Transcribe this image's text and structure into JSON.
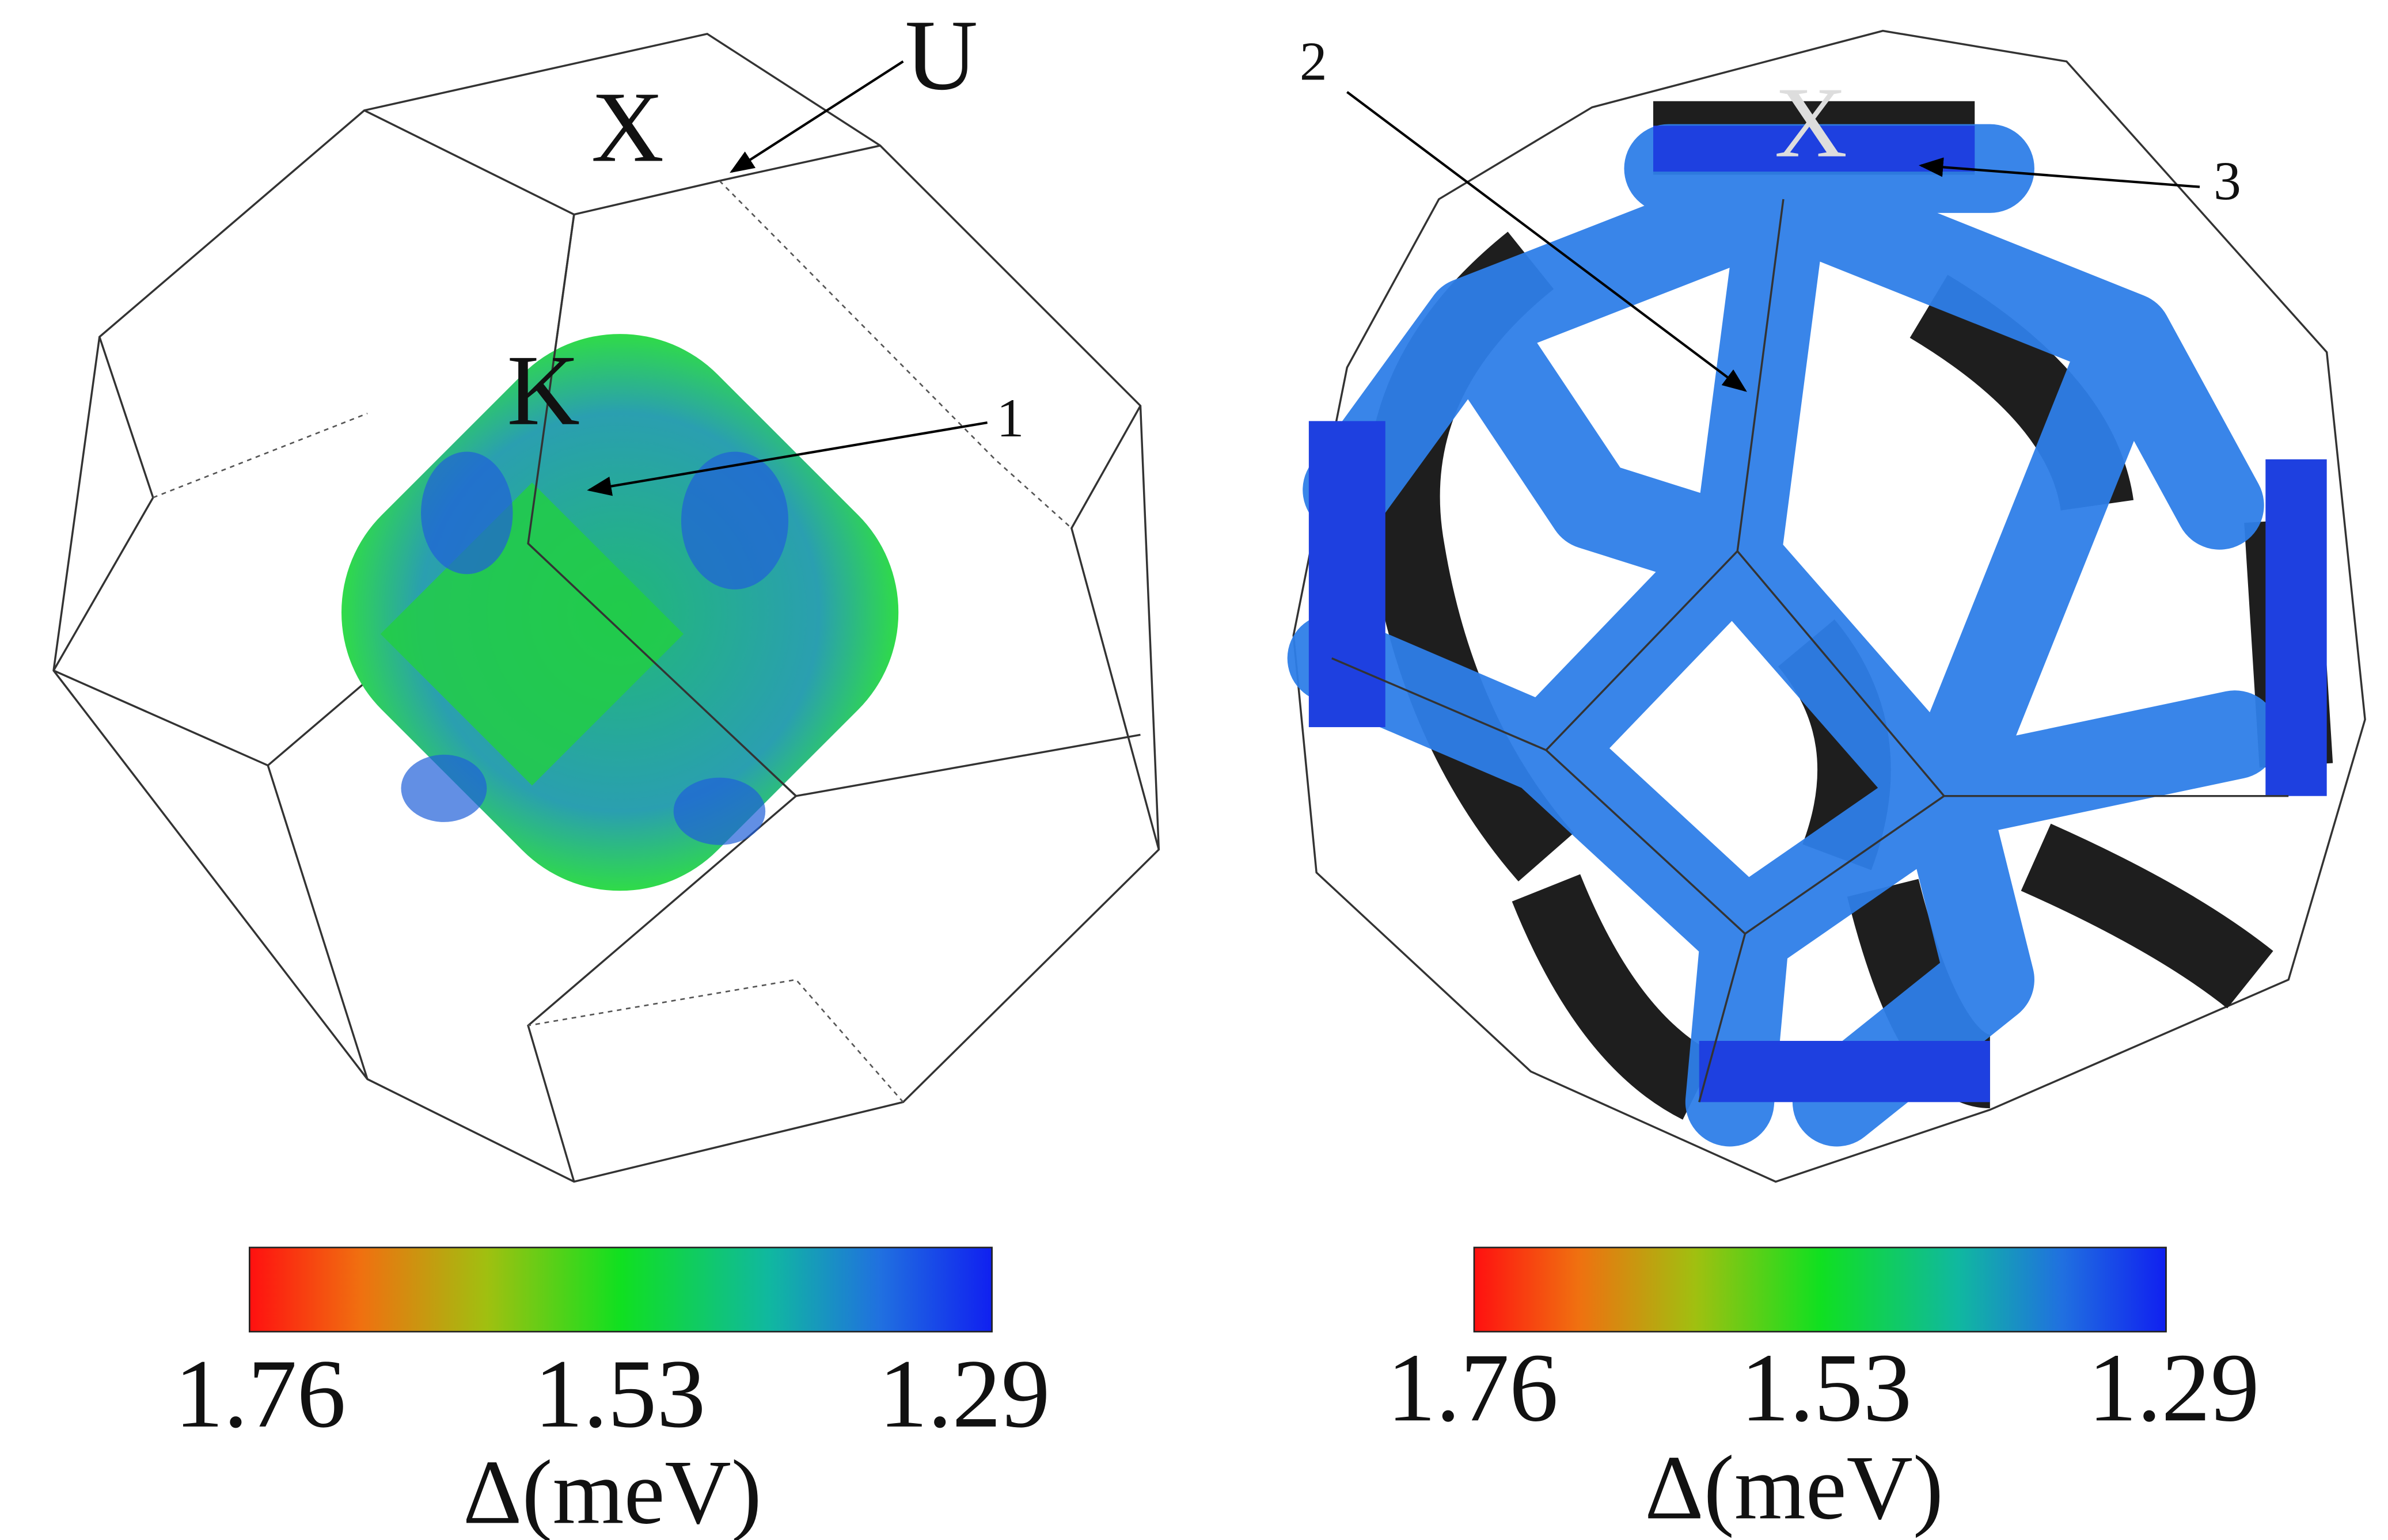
{
  "panels": [
    {
      "annotations": {
        "x": "X",
        "u": "U",
        "k": "K",
        "n1": "1"
      },
      "colorbar": {
        "ticks": [
          "1.76",
          "1.53",
          "1.29"
        ],
        "label": "Δ(meV)"
      }
    },
    {
      "annotations": {
        "n2": "2",
        "x": "X",
        "n3": "3"
      },
      "colorbar": {
        "ticks": [
          "1.76",
          "1.53",
          "1.29"
        ],
        "label": "Δ(meV)"
      }
    }
  ]
}
